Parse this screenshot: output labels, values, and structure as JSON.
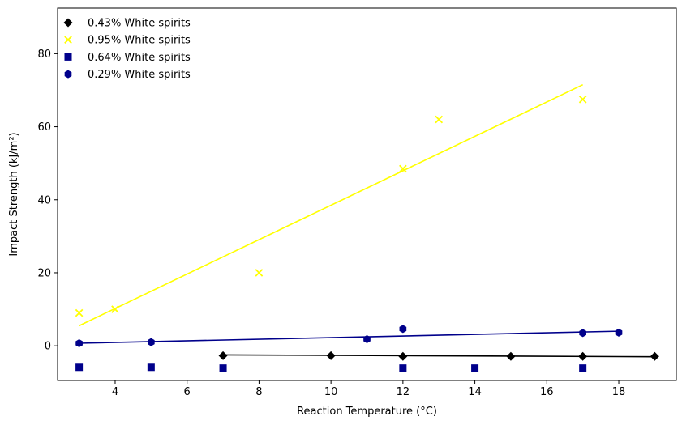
{
  "chart_data": {
    "type": "scatter",
    "xlabel": "Reaction Temperature (°C)",
    "ylabel": "Impact Strength (kJ/m²)",
    "xlim": [
      2.4,
      19.6
    ],
    "ylim": [
      -9.5,
      92.5
    ],
    "xticks": [
      4,
      6,
      8,
      10,
      12,
      14,
      16,
      18
    ],
    "yticks": [
      0,
      20,
      40,
      60,
      80
    ],
    "grid": false,
    "legend_position": "top-left",
    "series": [
      {
        "name": "0.43% White spirits",
        "marker": "diamond",
        "color": "#000000",
        "points": [
          [
            7,
            -2.7
          ],
          [
            10,
            -2.7
          ],
          [
            12,
            -2.9
          ],
          [
            15,
            -2.9
          ],
          [
            17,
            -2.9
          ],
          [
            19,
            -2.9
          ]
        ],
        "fit": [
          [
            7,
            -2.5
          ],
          [
            19,
            -3.0
          ]
        ]
      },
      {
        "name": "0.95% White spirits",
        "marker": "x",
        "color": "#ffff00",
        "points": [
          [
            3,
            9
          ],
          [
            4,
            10
          ],
          [
            8,
            20
          ],
          [
            12,
            48.5
          ],
          [
            13,
            62
          ],
          [
            17,
            67.5
          ]
        ],
        "fit": [
          [
            3,
            5.5
          ],
          [
            17,
            71.5
          ]
        ]
      },
      {
        "name": "0.64% White spirits",
        "marker": "square",
        "color": "#00008b",
        "points": [
          [
            3,
            -5.9
          ],
          [
            5,
            -5.9
          ],
          [
            7,
            -6.1
          ],
          [
            12,
            -6.1
          ],
          [
            14,
            -6.1
          ],
          [
            17,
            -6.1
          ]
        ],
        "fit": []
      },
      {
        "name": "0.29% White spirits",
        "marker": "hexagon",
        "color": "#00008b",
        "points": [
          [
            3,
            0.7
          ],
          [
            5,
            1.0
          ],
          [
            11,
            1.8
          ],
          [
            12,
            4.6
          ],
          [
            17,
            3.5
          ],
          [
            18,
            3.6
          ]
        ],
        "fit": [
          [
            3,
            0.7
          ],
          [
            18,
            4.0
          ]
        ]
      }
    ]
  }
}
